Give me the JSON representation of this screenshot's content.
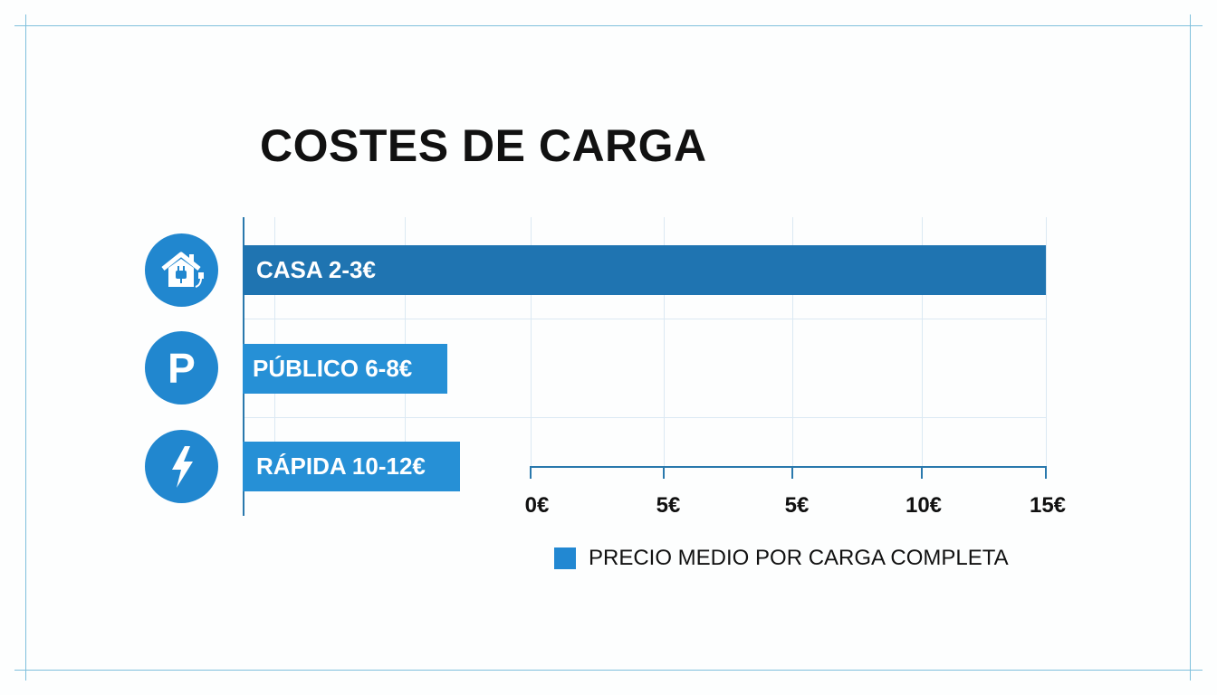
{
  "chart_data": {
    "type": "bar",
    "orientation": "horizontal",
    "title": "COSTES DE CARGA",
    "categories": [
      "CASA",
      "PÚBLICO",
      "RÁPIDA"
    ],
    "bar_labels": [
      "CASA 2-3€",
      "PÚBLICO 6-8€",
      "RÁPIDA 10-12€"
    ],
    "ranges": [
      [
        2,
        3
      ],
      [
        6,
        8
      ],
      [
        10,
        12
      ]
    ],
    "icons": [
      "house-plug-icon",
      "parking-icon",
      "lightning-icon"
    ],
    "x_tick_labels": [
      "0€",
      "5€",
      "5€",
      "10€",
      "15€"
    ],
    "legend": {
      "label": "PRECIO MEDIO POR CARGA COMPLETA",
      "placement": "bottom"
    },
    "grid": true,
    "colors": {
      "casa": "#1f74b1",
      "publico": "#2690d6",
      "rapida": "#2690d6",
      "icon_bg": "#2187cf",
      "axis": "#2a79ad"
    }
  }
}
